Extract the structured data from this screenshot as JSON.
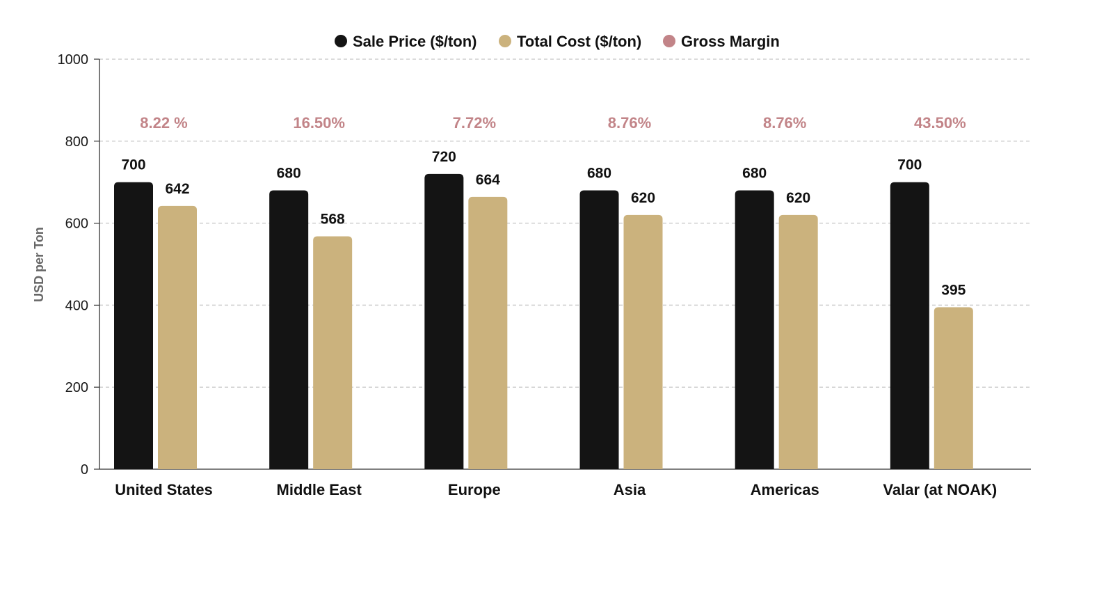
{
  "chart_data": {
    "type": "bar",
    "ylabel": "USD per Ton",
    "ylim": [
      0,
      1000
    ],
    "y_ticks": [
      0,
      200,
      400,
      600,
      800,
      1000
    ],
    "grid": "horizontal-dashed",
    "legend_position": "top-center",
    "categories": [
      "United States",
      "Middle East",
      "Europe",
      "Asia",
      "Americas",
      "Valar (at NOAK)"
    ],
    "series": [
      {
        "name": "Sale Price ($/ton)",
        "color": "#141414",
        "values": [
          700,
          680,
          720,
          680,
          680,
          700
        ]
      },
      {
        "name": "Total Cost ($/ton)",
        "color": "#cbb27d",
        "values": [
          642,
          568,
          664,
          620,
          620,
          395
        ]
      }
    ],
    "gross_margin": {
      "name": "Gross Margin",
      "color": "#c28488",
      "labels": [
        "8.22 %",
        "16.50%",
        "7.72%",
        "8.76%",
        "8.76%",
        "43.50%"
      ]
    }
  }
}
